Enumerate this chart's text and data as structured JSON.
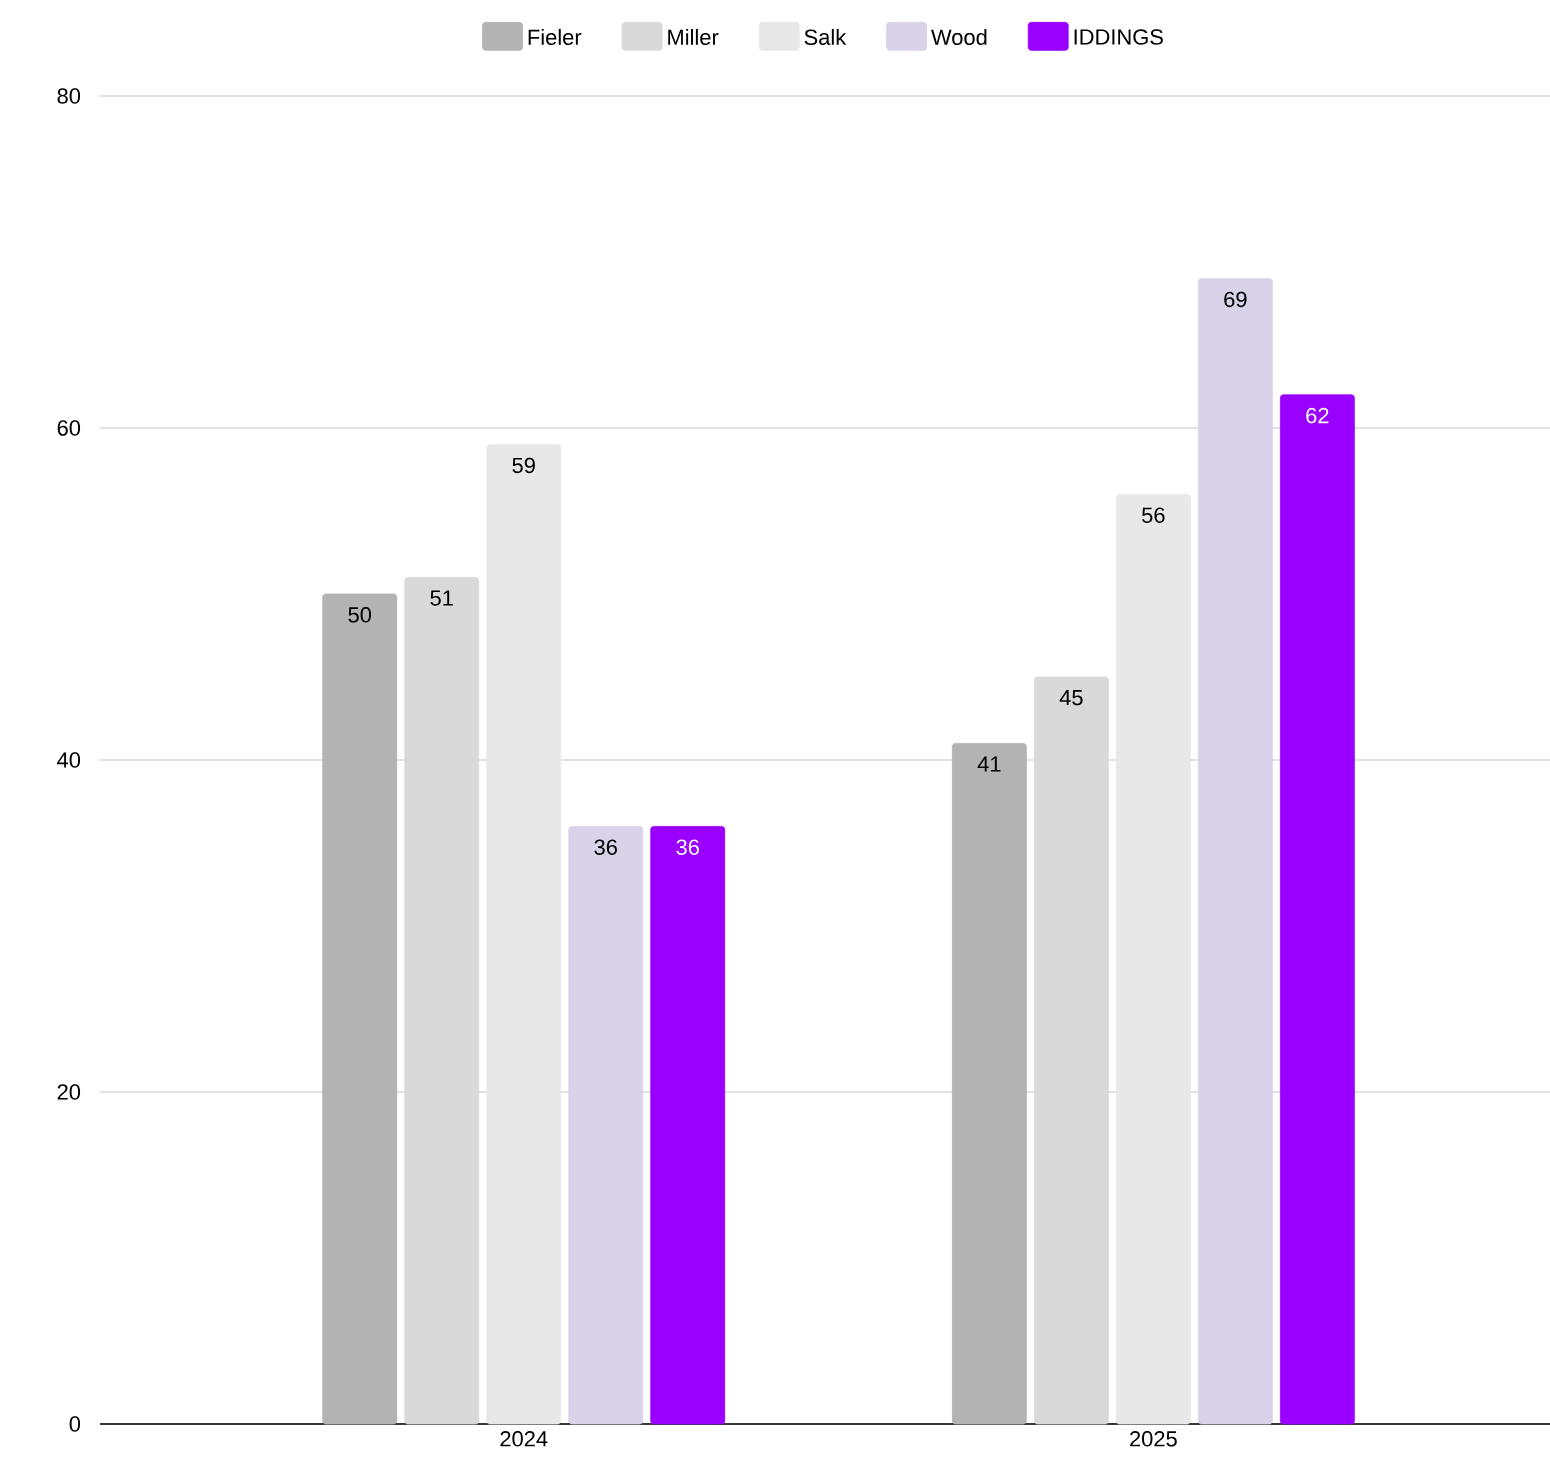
{
  "chart_data": {
    "type": "bar",
    "categories": [
      "2024",
      "2025"
    ],
    "series": [
      {
        "name": "Fieler",
        "color": "#b3b3b3",
        "values": [
          50,
          41
        ]
      },
      {
        "name": "Miller",
        "color": "#d9d9d9",
        "values": [
          51,
          45
        ]
      },
      {
        "name": "Salk",
        "color": "#e8e8e8",
        "values": [
          59,
          56
        ]
      },
      {
        "name": "Wood",
        "color": "#d9d2e9",
        "values": [
          36,
          69
        ]
      },
      {
        "name": "IDDINGS",
        "color": "#9900ff",
        "values": [
          36,
          62
        ]
      }
    ],
    "ylim": [
      0,
      80
    ],
    "yticks": [
      0,
      20,
      40,
      60,
      80
    ],
    "grid": "y",
    "legend": "top",
    "data_labels": true
  }
}
